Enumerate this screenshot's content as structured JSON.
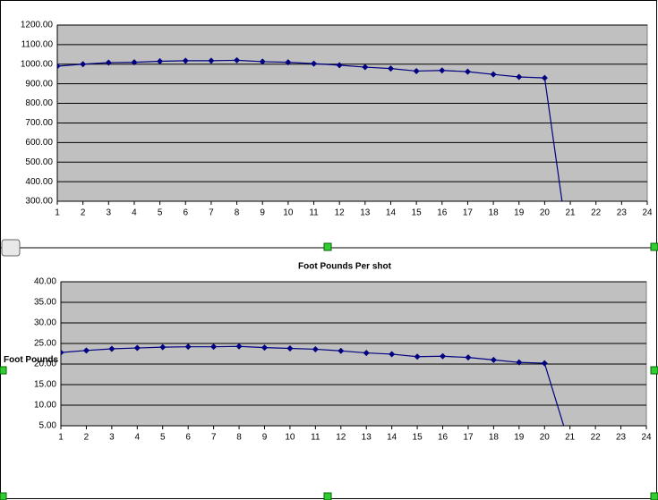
{
  "chart_data": [
    {
      "type": "line",
      "x": [
        1,
        2,
        3,
        4,
        5,
        6,
        7,
        8,
        9,
        10,
        11,
        12,
        13,
        14,
        15,
        16,
        17,
        18,
        19,
        20,
        21
      ],
      "series": [
        {
          "color": "#000080",
          "values": [
            990,
            1000,
            1008,
            1010,
            1015,
            1018,
            1018,
            1020,
            1013,
            1010,
            1003,
            995,
            985,
            978,
            965,
            968,
            962,
            948,
            935,
            930,
            0
          ]
        }
      ],
      "xlim": [
        1,
        24
      ],
      "xticks": [
        1,
        2,
        3,
        4,
        5,
        6,
        7,
        8,
        9,
        10,
        11,
        12,
        13,
        14,
        15,
        16,
        17,
        18,
        19,
        20,
        21,
        22,
        23,
        24
      ],
      "ylim": [
        300,
        1200
      ],
      "yticks": [
        {
          "value": 300,
          "label": "300.00"
        },
        {
          "value": 400,
          "label": "400.00"
        },
        {
          "value": 500,
          "label": "500.00"
        },
        {
          "value": 600,
          "label": "600.00"
        },
        {
          "value": 700,
          "label": "700.00"
        },
        {
          "value": 800,
          "label": "800.00"
        },
        {
          "value": 900,
          "label": "900.00"
        },
        {
          "value": 1000,
          "label": "1000.00"
        },
        {
          "value": 1100,
          "label": "1100.00"
        },
        {
          "value": 1200,
          "label": "1200.00"
        }
      ],
      "grid": true
    },
    {
      "type": "line",
      "title": "Foot Pounds Per shot",
      "y_label": "Foot Pounds",
      "x": [
        1,
        2,
        3,
        4,
        5,
        6,
        7,
        8,
        9,
        10,
        11,
        12,
        13,
        14,
        15,
        16,
        17,
        18,
        19,
        20,
        21
      ],
      "series": [
        {
          "color": "#000080",
          "values": [
            22.8,
            23.3,
            23.7,
            23.9,
            24.1,
            24.2,
            24.2,
            24.3,
            24.0,
            23.8,
            23.6,
            23.2,
            22.7,
            22.4,
            21.8,
            21.9,
            21.6,
            21.0,
            20.4,
            20.2,
            0
          ]
        }
      ],
      "xlim": [
        1,
        24
      ],
      "xticks": [
        1,
        2,
        3,
        4,
        5,
        6,
        7,
        8,
        9,
        10,
        11,
        12,
        13,
        14,
        15,
        16,
        17,
        18,
        19,
        20,
        21,
        22,
        23,
        24
      ],
      "ylim": [
        5,
        40
      ],
      "yticks": [
        {
          "value": 5,
          "label": "5.00"
        },
        {
          "value": 10,
          "label": "10.00"
        },
        {
          "value": 15,
          "label": "15.00"
        },
        {
          "value": 20,
          "label": "20.00"
        },
        {
          "value": 25,
          "label": "25.00"
        },
        {
          "value": 30,
          "label": "30.00"
        },
        {
          "value": 35,
          "label": "35.00"
        },
        {
          "value": 40,
          "label": "40.00"
        }
      ],
      "grid": true
    }
  ]
}
